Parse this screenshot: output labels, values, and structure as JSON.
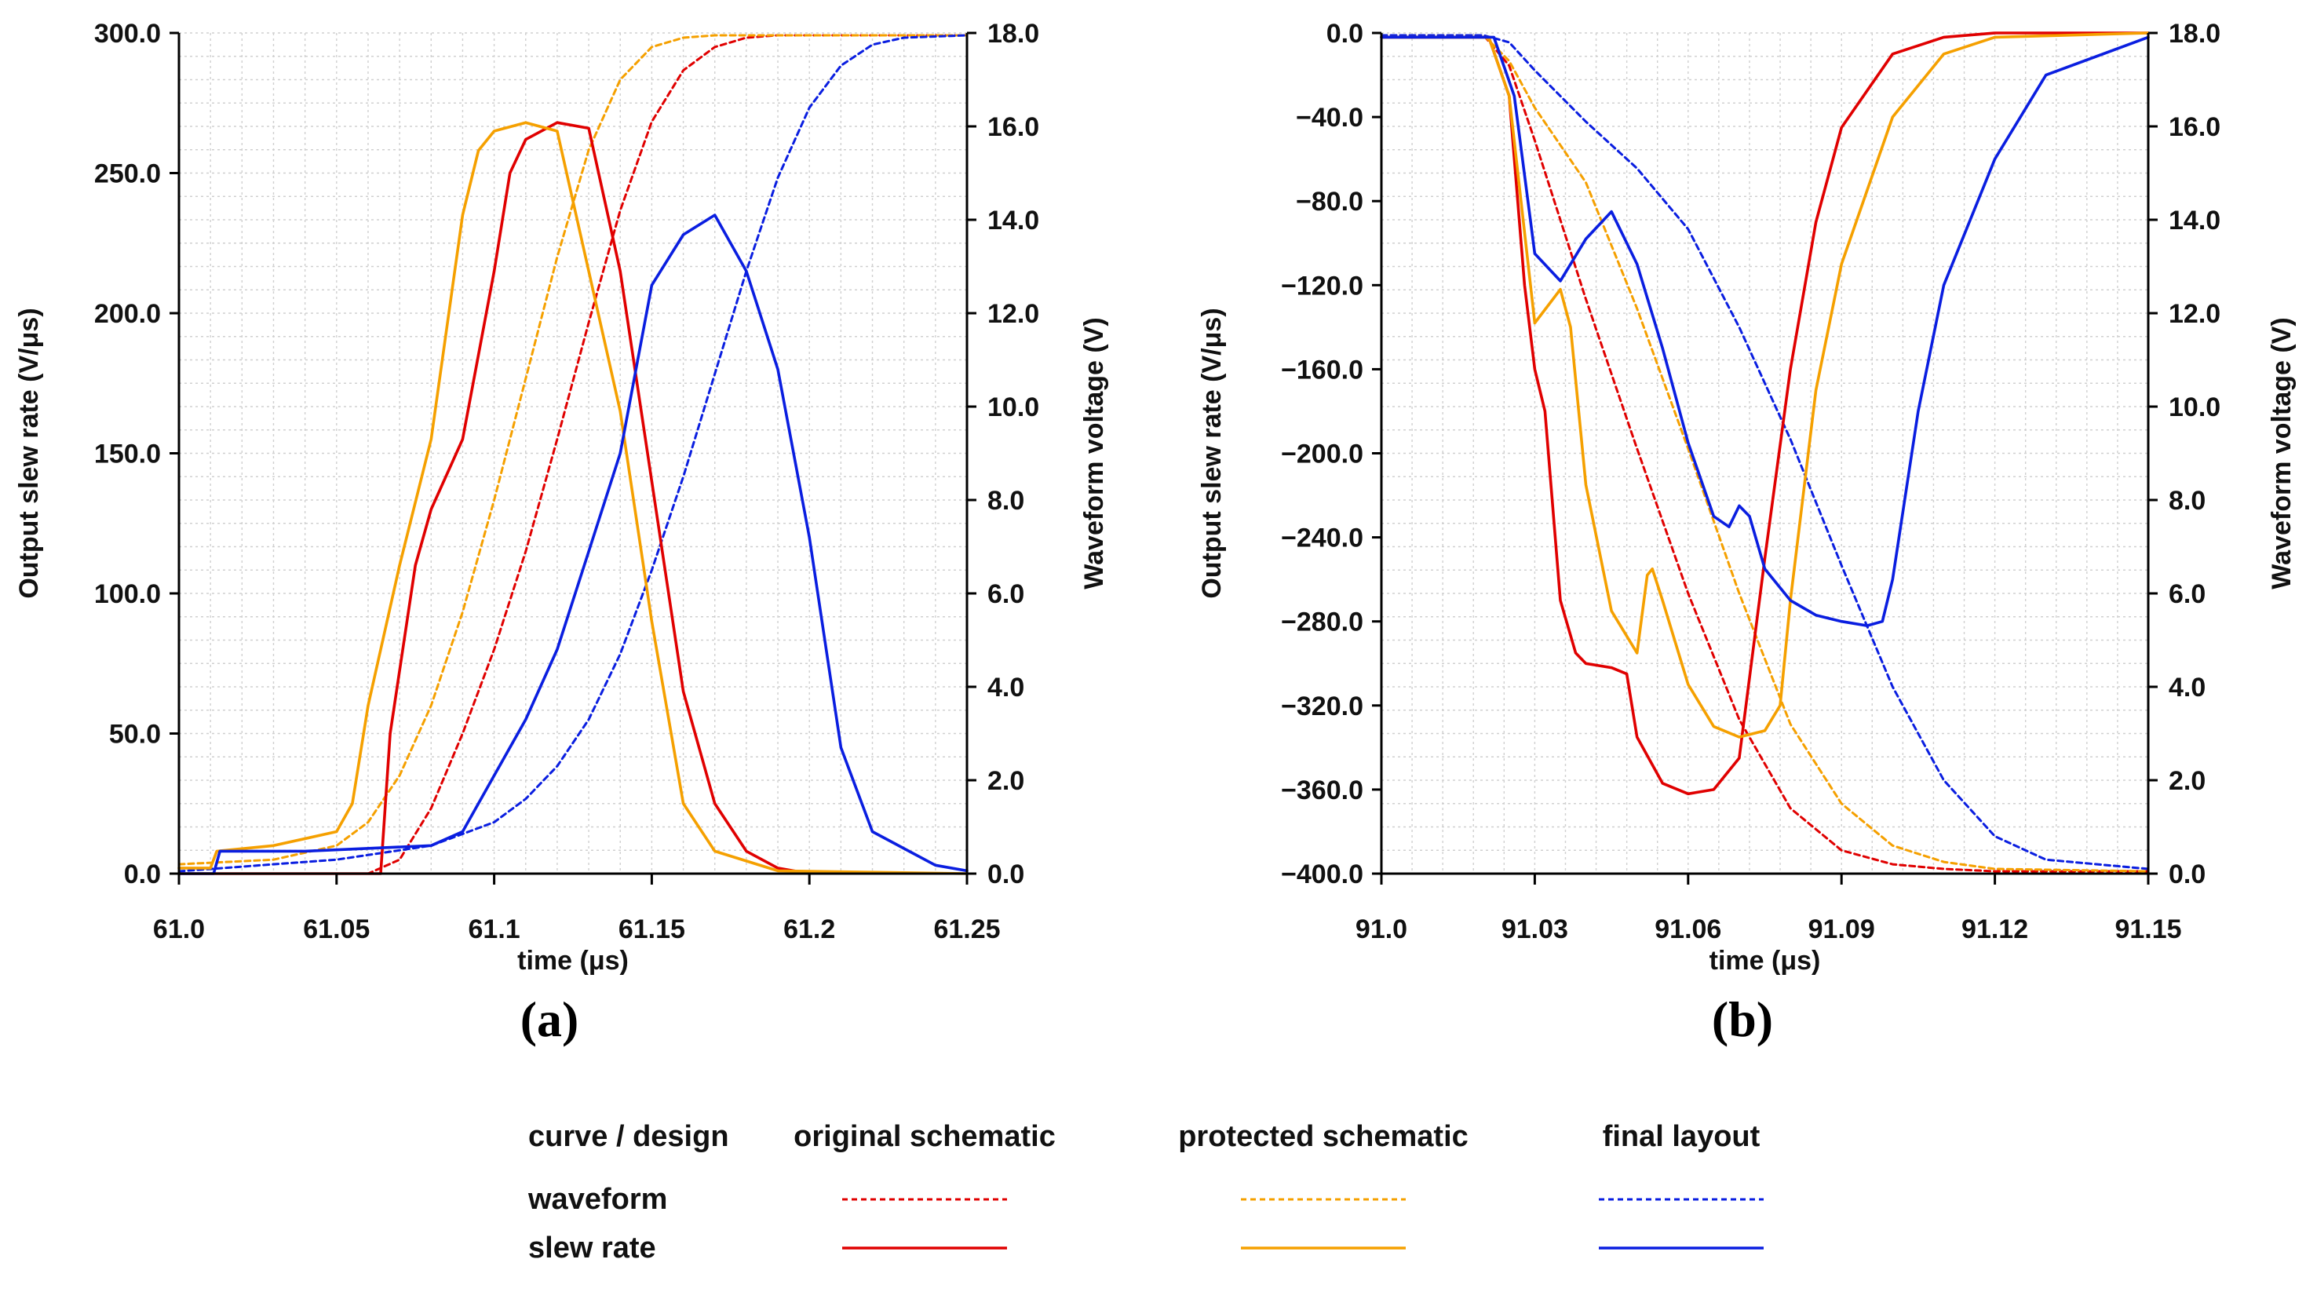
{
  "chart_data": [
    {
      "type": "line",
      "panel_label": "(a)",
      "xlabel": "time (μs)",
      "ylabel": "Output slew rate (V/μs)",
      "y2label": "Waveform voltage (V)",
      "xlim": [
        61.0,
        61.25
      ],
      "ylim": [
        0,
        300
      ],
      "y2lim": [
        0,
        18
      ],
      "xticks": [
        61.0,
        61.05,
        61.1,
        61.15,
        61.2,
        61.25
      ],
      "xtick_labels": [
        "61.0",
        "61.05",
        "61.1",
        "61.15",
        "61.2",
        "61.25"
      ],
      "yticks": [
        0,
        50,
        100,
        150,
        200,
        250,
        300
      ],
      "ytick_labels": [
        "0.0",
        "50.0",
        "100.0",
        "150.0",
        "200.0",
        "250.0",
        "300.0"
      ],
      "y2ticks": [
        0,
        2,
        4,
        6,
        8,
        10,
        12,
        14,
        16,
        18
      ],
      "y2tick_labels": [
        "0.0",
        "2.0",
        "4.0",
        "6.0",
        "8.0",
        "10.0",
        "12.0",
        "14.0",
        "16.0",
        "18.0"
      ],
      "grid": true,
      "series": [
        {
          "design": "original schematic",
          "curve": "waveform",
          "axis": "y2",
          "color": "#e00000",
          "dashed": true,
          "x": [
            61.0,
            61.06,
            61.07,
            61.08,
            61.09,
            61.1,
            61.11,
            61.12,
            61.13,
            61.14,
            61.15,
            61.16,
            61.17,
            61.18,
            61.19,
            61.2,
            61.25
          ],
          "y": [
            0,
            0,
            0.3,
            1.4,
            3.0,
            4.8,
            6.9,
            9.3,
            11.8,
            14.2,
            16.1,
            17.2,
            17.7,
            17.9,
            17.95,
            17.95,
            17.95
          ]
        },
        {
          "design": "protected schematic",
          "curve": "waveform",
          "axis": "y2",
          "color": "#f5a000",
          "dashed": true,
          "x": [
            61.0,
            61.03,
            61.05,
            61.06,
            61.07,
            61.08,
            61.09,
            61.1,
            61.11,
            61.12,
            61.13,
            61.14,
            61.15,
            61.16,
            61.17,
            61.2,
            61.25
          ],
          "y": [
            0.2,
            0.3,
            0.6,
            1.1,
            2.1,
            3.6,
            5.6,
            8.0,
            10.6,
            13.2,
            15.5,
            17.0,
            17.7,
            17.9,
            17.95,
            17.95,
            17.95
          ]
        },
        {
          "design": "final layout",
          "curve": "waveform",
          "axis": "y2",
          "color": "#0a1ee0",
          "dashed": true,
          "x": [
            61.0,
            61.05,
            61.08,
            61.1,
            61.11,
            61.12,
            61.13,
            61.14,
            61.15,
            61.16,
            61.17,
            61.18,
            61.19,
            61.2,
            61.21,
            61.22,
            61.23,
            61.25
          ],
          "y": [
            0.05,
            0.3,
            0.6,
            1.1,
            1.6,
            2.3,
            3.3,
            4.7,
            6.5,
            8.5,
            10.7,
            12.9,
            14.9,
            16.4,
            17.3,
            17.75,
            17.9,
            17.95
          ]
        },
        {
          "design": "original schematic",
          "curve": "slew rate",
          "axis": "y",
          "color": "#e00000",
          "dashed": false,
          "x": [
            61.0,
            61.064,
            61.067,
            61.075,
            61.08,
            61.09,
            61.1,
            61.105,
            61.11,
            61.12,
            61.13,
            61.14,
            61.15,
            61.16,
            61.17,
            61.18,
            61.19,
            61.2
          ],
          "y": [
            0,
            0,
            50,
            110,
            130,
            155,
            215,
            250,
            262,
            268,
            266,
            215,
            140,
            65,
            25,
            8,
            2,
            0
          ]
        },
        {
          "design": "protected schematic",
          "curve": "slew rate",
          "axis": "y",
          "color": "#f5a000",
          "dashed": false,
          "x": [
            61.0,
            61.01,
            61.012,
            61.03,
            61.05,
            61.055,
            61.06,
            61.07,
            61.08,
            61.09,
            61.095,
            61.1,
            61.11,
            61.12,
            61.13,
            61.14,
            61.15,
            61.16,
            61.17,
            61.19,
            61.25
          ],
          "y": [
            2,
            2,
            8,
            10,
            15,
            25,
            60,
            110,
            155,
            235,
            258,
            265,
            268,
            265,
            215,
            165,
            90,
            25,
            8,
            1,
            0
          ]
        },
        {
          "design": "final layout",
          "curve": "slew rate",
          "axis": "y",
          "color": "#0a1ee0",
          "dashed": false,
          "x": [
            61.0,
            61.011,
            61.013,
            61.04,
            61.08,
            61.09,
            61.1,
            61.11,
            61.12,
            61.13,
            61.14,
            61.15,
            61.16,
            61.17,
            61.18,
            61.19,
            61.2,
            61.21,
            61.22,
            61.24,
            61.25
          ],
          "y": [
            0,
            0,
            8,
            8,
            10,
            15,
            35,
            55,
            80,
            115,
            150,
            210,
            228,
            235,
            215,
            180,
            120,
            45,
            15,
            3,
            1
          ]
        }
      ]
    },
    {
      "type": "line",
      "panel_label": "(b)",
      "xlabel": "time (μs)",
      "ylabel": "Output slew rate (V/μs)",
      "y2label": "Waveform voltage (V)",
      "xlim": [
        91.0,
        91.15
      ],
      "ylim": [
        -400,
        0
      ],
      "y2lim": [
        0,
        18
      ],
      "xticks": [
        91.0,
        91.03,
        91.06,
        91.09,
        91.12,
        91.15
      ],
      "xtick_labels": [
        "91.0",
        "91.03",
        "91.06",
        "91.09",
        "91.12",
        "91.15"
      ],
      "yticks": [
        -400,
        -360,
        -320,
        -280,
        -240,
        -200,
        -160,
        -120,
        -80,
        -40,
        0
      ],
      "ytick_labels": [
        "−400.0",
        "−360.0",
        "−320.0",
        "−280.0",
        "−240.0",
        "−200.0",
        "−160.0",
        "−120.0",
        "−80.0",
        "−40.0",
        "0.0"
      ],
      "y2ticks": [
        0,
        2,
        4,
        6,
        8,
        10,
        12,
        14,
        16,
        18
      ],
      "y2tick_labels": [
        "0.0",
        "2.0",
        "4.0",
        "6.0",
        "8.0",
        "10.0",
        "12.0",
        "14.0",
        "16.0",
        "18.0"
      ],
      "grid": true,
      "series": [
        {
          "design": "original schematic",
          "curve": "waveform",
          "axis": "y2",
          "color": "#e00000",
          "dashed": true,
          "x": [
            91.0,
            91.02,
            91.025,
            91.03,
            91.04,
            91.05,
            91.06,
            91.07,
            91.08,
            91.09,
            91.1,
            91.11,
            91.12,
            91.15
          ],
          "y": [
            17.95,
            17.95,
            17.3,
            15.7,
            12.3,
            9.1,
            6.0,
            3.3,
            1.4,
            0.5,
            0.2,
            0.1,
            0.05,
            0.05
          ]
        },
        {
          "design": "protected schematic",
          "curve": "waveform",
          "axis": "y2",
          "color": "#f5a000",
          "dashed": true,
          "x": [
            91.0,
            91.02,
            91.025,
            91.03,
            91.04,
            91.05,
            91.06,
            91.07,
            91.08,
            91.09,
            91.1,
            91.11,
            91.12,
            91.15
          ],
          "y": [
            17.95,
            17.95,
            17.4,
            16.4,
            14.8,
            12.1,
            9.1,
            6.0,
            3.2,
            1.5,
            0.6,
            0.25,
            0.1,
            0.05
          ]
        },
        {
          "design": "final layout",
          "curve": "waveform",
          "axis": "y2",
          "color": "#0a1ee0",
          "dashed": true,
          "x": [
            91.0,
            91.02,
            91.025,
            91.03,
            91.04,
            91.05,
            91.06,
            91.07,
            91.08,
            91.09,
            91.1,
            91.11,
            91.12,
            91.13,
            91.15
          ],
          "y": [
            17.95,
            17.95,
            17.8,
            17.2,
            16.1,
            15.1,
            13.8,
            11.7,
            9.3,
            6.6,
            4.0,
            2.0,
            0.8,
            0.3,
            0.1
          ]
        },
        {
          "design": "original schematic",
          "curve": "slew rate",
          "axis": "y",
          "color": "#e00000",
          "dashed": false,
          "x": [
            91.0,
            91.021,
            91.025,
            91.028,
            91.03,
            91.032,
            91.035,
            91.038,
            91.04,
            91.045,
            91.048,
            91.05,
            91.055,
            91.06,
            91.065,
            91.07,
            91.075,
            91.08,
            91.085,
            91.09,
            91.1,
            91.11,
            91.12,
            91.15
          ],
          "y": [
            -2,
            -2,
            -30,
            -120,
            -160,
            -180,
            -270,
            -295,
            -300,
            -302,
            -305,
            -335,
            -357,
            -362,
            -360,
            -345,
            -250,
            -160,
            -90,
            -45,
            -10,
            -2,
            0,
            0
          ]
        },
        {
          "design": "protected schematic",
          "curve": "slew rate",
          "axis": "y",
          "color": "#f5a000",
          "dashed": false,
          "x": [
            91.0,
            91.021,
            91.025,
            91.03,
            91.035,
            91.037,
            91.04,
            91.045,
            91.05,
            91.052,
            91.053,
            91.055,
            91.06,
            91.065,
            91.07,
            91.075,
            91.078,
            91.08,
            91.085,
            91.09,
            91.1,
            91.11,
            91.12,
            91.15
          ],
          "y": [
            -2,
            -2,
            -30,
            -138,
            -122,
            -140,
            -215,
            -275,
            -295,
            -258,
            -255,
            -270,
            -310,
            -330,
            -335,
            -332,
            -320,
            -270,
            -170,
            -110,
            -40,
            -10,
            -2,
            0
          ]
        },
        {
          "design": "final layout",
          "curve": "slew rate",
          "axis": "y",
          "color": "#0a1ee0",
          "dashed": false,
          "x": [
            91.0,
            91.022,
            91.026,
            91.03,
            91.035,
            91.04,
            91.045,
            91.05,
            91.055,
            91.06,
            91.065,
            91.068,
            91.07,
            91.072,
            91.075,
            91.08,
            91.085,
            91.09,
            91.095,
            91.098,
            91.1,
            91.105,
            91.11,
            91.12,
            91.13,
            91.15
          ],
          "y": [
            -2,
            -2,
            -30,
            -105,
            -118,
            -98,
            -85,
            -110,
            -150,
            -195,
            -230,
            -235,
            -225,
            -230,
            -255,
            -270,
            -277,
            -280,
            -282,
            -280,
            -260,
            -180,
            -120,
            -60,
            -20,
            -2
          ]
        }
      ]
    }
  ],
  "legend": {
    "header": "curve / design",
    "columns": [
      "original schematic",
      "protected schematic",
      "final layout"
    ],
    "rows": [
      {
        "label": "waveform",
        "dashed": true
      },
      {
        "label": "slew rate",
        "dashed": false
      }
    ],
    "colors": [
      "#e00000",
      "#f5a000",
      "#0a1ee0"
    ]
  }
}
